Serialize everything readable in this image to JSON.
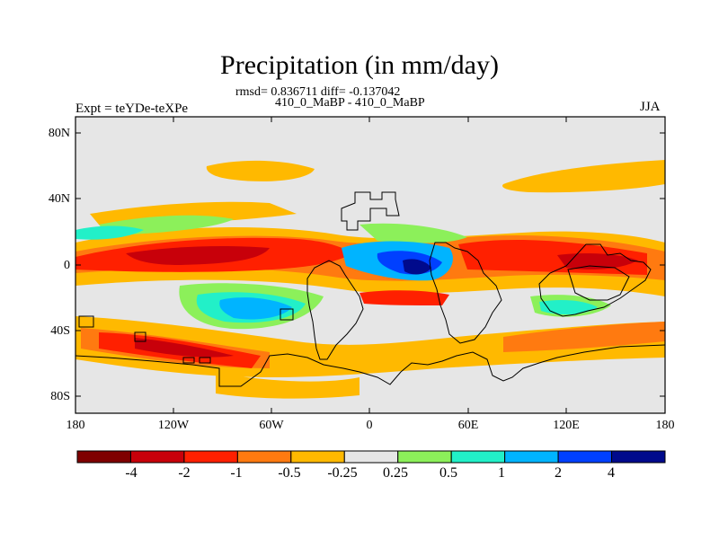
{
  "title": "Precipitation (in mm/day)",
  "stats_line": "rmsd= 0.836711 diff= -0.137042",
  "runs_line": "410_0_MaBP - 410_0_MaBP",
  "expt_label": "Expt = teYDe-teXPe",
  "season": "JJA",
  "axes": {
    "lat_ticks": [
      "80N",
      "40N",
      "0",
      "40S",
      "80S"
    ],
    "lon_ticks": [
      "180",
      "120W",
      "60W",
      "0",
      "60E",
      "120E",
      "180"
    ]
  },
  "colorbar": {
    "colors": [
      "#7f0000",
      "#c8000a",
      "#ff2000",
      "#ff7a10",
      "#ffb900",
      "#e6e6e6",
      "#8cf05a",
      "#22f0c8",
      "#00b4ff",
      "#0040ff",
      "#000a8c"
    ],
    "labels": [
      "-4",
      "-2",
      "-1",
      "-0.5",
      "-0.25",
      "0.25",
      "0.5",
      "1",
      "2",
      "4"
    ]
  },
  "colors": {
    "background": "#e6e6e6",
    "coastline": "#000000"
  }
}
